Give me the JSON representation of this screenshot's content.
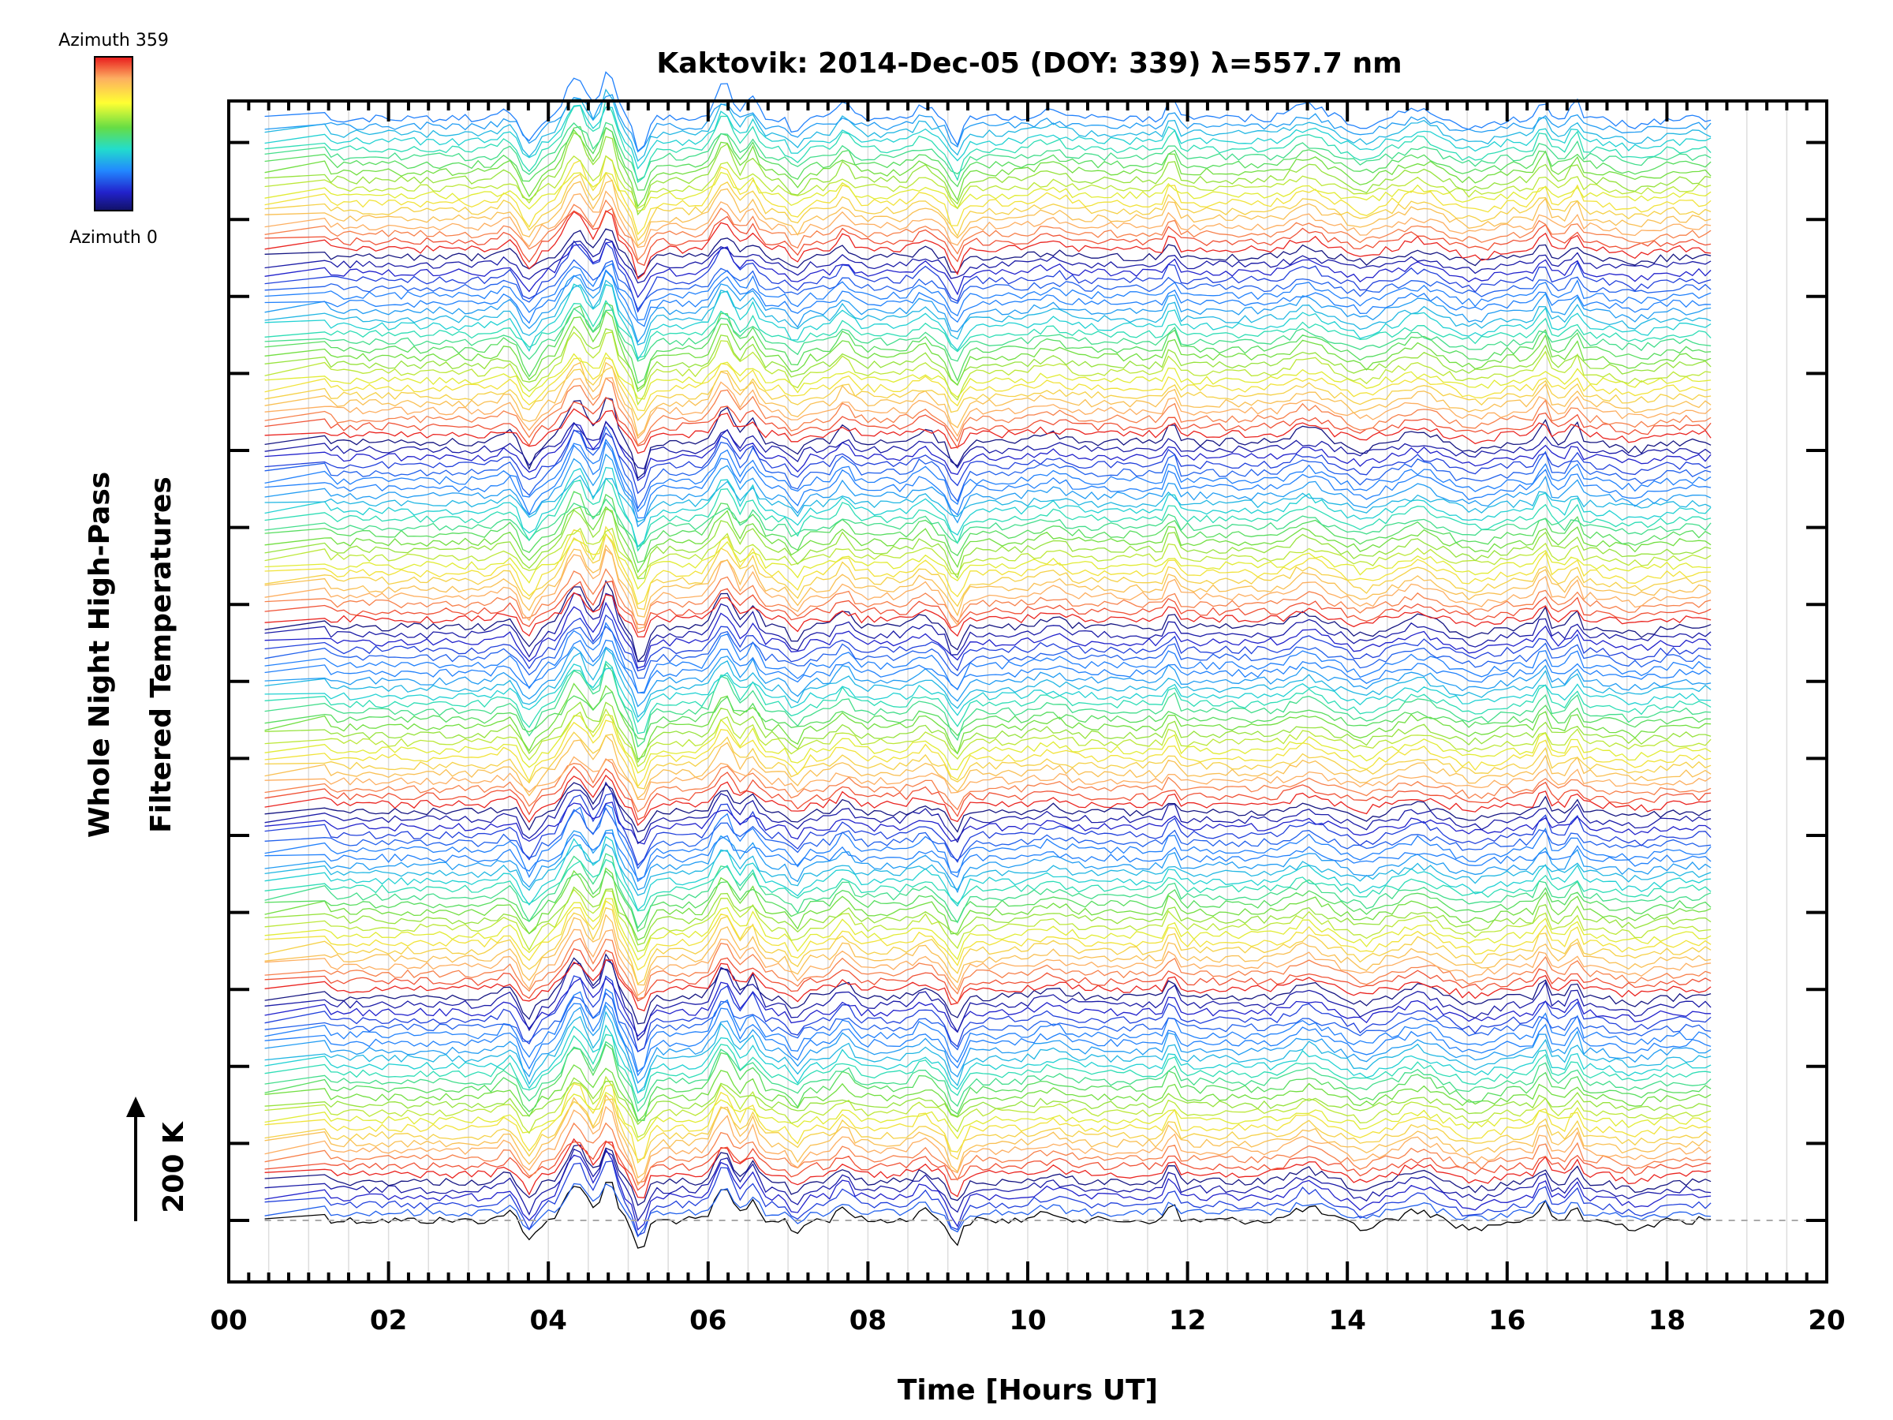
{
  "chart_data": {
    "type": "line",
    "title": "Kaktovik: 2014-Dec-05 (DOY: 339) λ=557.7 nm",
    "xlabel": "Time [Hours UT]",
    "ylabel_line1": "Whole Night High-Pass",
    "ylabel_line2": "Filtered Temperatures",
    "scale_label": "200 K",
    "xlim": [
      0,
      20
    ],
    "x_ticks": [
      "00",
      "02",
      "04",
      "06",
      "08",
      "10",
      "12",
      "14",
      "16",
      "18",
      "20"
    ],
    "colorbar": {
      "top_label": "Azimuth 359",
      "bottom_label": "Azimuth 0",
      "colors": [
        "#d7191c",
        "#fdae61",
        "#ffff33",
        "#66dd44",
        "#22ddcc",
        "#2288ff",
        "#2222cc",
        "#111166"
      ]
    },
    "series_count": 144,
    "stack_groups": 6,
    "time_range_hours": [
      0.45,
      18.55
    ],
    "feature_times_hours": [
      1.2,
      3.5,
      3.75,
      4.35,
      4.75,
      5.15,
      6.2,
      6.55,
      7.1,
      7.7,
      8.7,
      9.1,
      10.3,
      11.8,
      13.5,
      14.2,
      14.9,
      15.6,
      16.45,
      16.85,
      17.6
    ],
    "baseline_level": "dashed line at bottom trace"
  }
}
